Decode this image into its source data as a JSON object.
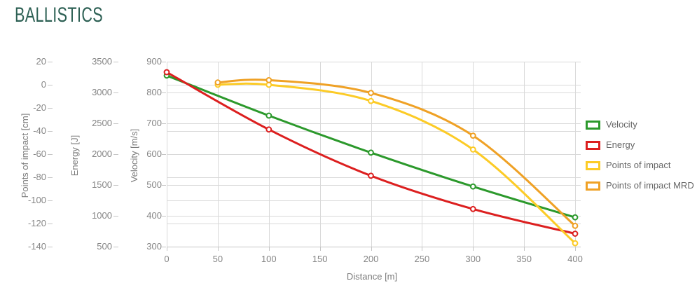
{
  "header": {
    "title": "BALLISTICS",
    "title_color": "#2D6054"
  },
  "chart_data": {
    "type": "line",
    "title": "BALLISTICS",
    "grid": true,
    "legend_position": "right",
    "colors": {
      "grid": "#d9d9d9",
      "axis_line": "#c6c6c6",
      "tick_text": "#858585",
      "axis_title_text": "#7b7b7b",
      "legend_text": "#666666"
    },
    "x_axis": {
      "label": "Distance [m]",
      "range": [
        0,
        400
      ],
      "ticks": [
        0,
        50,
        100,
        150,
        200,
        250,
        300,
        350,
        400
      ]
    },
    "y_axes": [
      {
        "id": "poi",
        "label": "Points of impact [cm]",
        "range": [
          -140,
          20
        ],
        "ticks": [
          20,
          0,
          -20,
          -40,
          -60,
          -80,
          -100,
          -120,
          -140
        ]
      },
      {
        "id": "energy",
        "label": "Energy [J]",
        "range": [
          500,
          3500
        ],
        "ticks": [
          3500,
          3000,
          2500,
          2000,
          1500,
          1000,
          500
        ]
      },
      {
        "id": "velocity",
        "label": "Velocity [m/s]",
        "range": [
          300,
          900
        ],
        "ticks": [
          900,
          800,
          700,
          600,
          500,
          400,
          300
        ]
      }
    ],
    "series": [
      {
        "name": "Velocity",
        "axis": "velocity",
        "color": "#2C992C",
        "points": [
          [
            0,
            855
          ],
          [
            100,
            725
          ],
          [
            200,
            605
          ],
          [
            300,
            495
          ],
          [
            400,
            395
          ]
        ]
      },
      {
        "name": "Energy",
        "axis": "energy",
        "color": "#DC1F1F",
        "points": [
          [
            0,
            3330
          ],
          [
            100,
            2400
          ],
          [
            200,
            1650
          ],
          [
            300,
            1110
          ],
          [
            400,
            710
          ]
        ]
      },
      {
        "name": "Points of impact",
        "axis": "poi",
        "color": "#FCCB26",
        "points": [
          [
            50,
            0
          ],
          [
            100,
            0
          ],
          [
            200,
            -14
          ],
          [
            300,
            -56
          ],
          [
            400,
            -137
          ]
        ]
      },
      {
        "name": "Points of impact MRD",
        "axis": "poi",
        "color": "#EFA125",
        "points": [
          [
            50,
            2
          ],
          [
            100,
            4
          ],
          [
            200,
            -7
          ],
          [
            300,
            -44
          ],
          [
            400,
            -122
          ]
        ]
      }
    ]
  }
}
